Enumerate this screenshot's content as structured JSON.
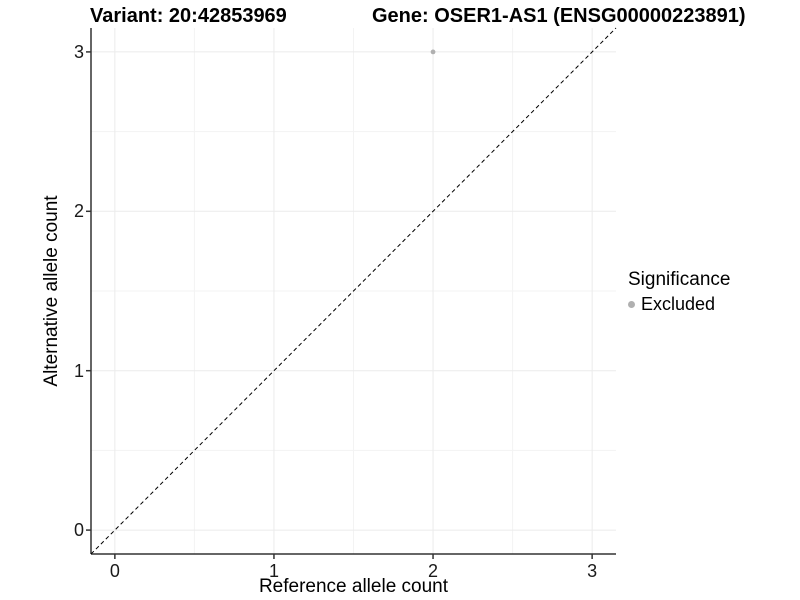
{
  "header": {
    "variant_title": "Variant: 20:42853969",
    "gene_title": "Gene: OSER1-AS1 (ENSG00000223891)"
  },
  "chart_data": {
    "type": "scatter",
    "title": "Variant: 20:42853969   Gene: OSER1-AS1 (ENSG00000223891)",
    "xlabel": "Reference allele count",
    "ylabel": "Alternative allele count",
    "xlim": [
      -0.15,
      3.15
    ],
    "ylim": [
      -0.15,
      3.15
    ],
    "x_ticks": [
      0,
      1,
      2,
      3
    ],
    "y_ticks": [
      0,
      1,
      2,
      3
    ],
    "x_minor_ticks": [
      0.5,
      1.5,
      2.5
    ],
    "y_minor_ticks": [
      0.5,
      1.5,
      2.5
    ],
    "grid": true,
    "legend_position": "right",
    "points": [
      {
        "x": 2,
        "y": 3,
        "series": "Excluded"
      }
    ],
    "series_colors": {
      "Excluded": "#b0b0b0"
    },
    "reference_line": {
      "slope": 1,
      "intercept": 0,
      "style": "dashed",
      "color": "#000000"
    },
    "legend": {
      "title": "Significance",
      "items": [
        {
          "label": "Excluded",
          "color": "#b0b0b0"
        }
      ]
    }
  },
  "colors": {
    "background": "#ffffff",
    "grid_major": "#ebebeb",
    "grid_minor": "#f3f3f3",
    "axis_line": "#333333",
    "tick_text": "#1a1a1a",
    "point": "#b0b0b0"
  }
}
